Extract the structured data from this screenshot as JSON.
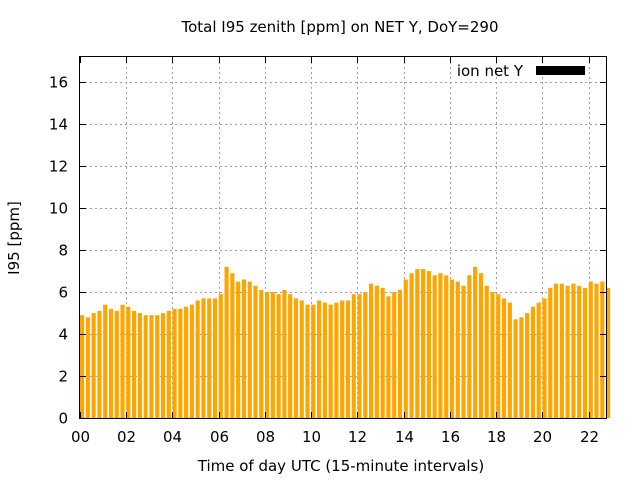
{
  "chart_data": {
    "type": "bar",
    "title": "Total I95 zenith [ppm] on NET Y, DoY=290",
    "xlabel": "Time of day UTC (15-minute intervals)",
    "ylabel": "I95 [ppm]",
    "xlim": [
      0,
      22.75
    ],
    "ylim": [
      0,
      17.2
    ],
    "x_ticks": [
      {
        "value": 0,
        "label": "00"
      },
      {
        "value": 2,
        "label": "02"
      },
      {
        "value": 4,
        "label": "04"
      },
      {
        "value": 6,
        "label": "06"
      },
      {
        "value": 8,
        "label": "08"
      },
      {
        "value": 10,
        "label": "10"
      },
      {
        "value": 12,
        "label": "12"
      },
      {
        "value": 14,
        "label": "14"
      },
      {
        "value": 16,
        "label": "16"
      },
      {
        "value": 18,
        "label": "18"
      },
      {
        "value": 20,
        "label": "20"
      },
      {
        "value": 22,
        "label": "22"
      }
    ],
    "y_ticks": [
      {
        "value": 0,
        "label": "0"
      },
      {
        "value": 2,
        "label": "2"
      },
      {
        "value": 4,
        "label": "4"
      },
      {
        "value": 6,
        "label": "6"
      },
      {
        "value": 8,
        "label": "8"
      },
      {
        "value": 10,
        "label": "10"
      },
      {
        "value": 12,
        "label": "12"
      },
      {
        "value": 14,
        "label": "14"
      },
      {
        "value": 16,
        "label": "16"
      }
    ],
    "grid": true,
    "legend_position": "top-right",
    "series": [
      {
        "name": "ion net Y",
        "color": "#ffa500",
        "legend_swatch_color": "#000000",
        "x_start": 0,
        "x_step": 0.25,
        "values": [
          4.9,
          4.8,
          5.0,
          5.1,
          5.4,
          5.2,
          5.1,
          5.4,
          5.3,
          5.1,
          5.0,
          4.9,
          4.9,
          4.9,
          5.0,
          5.1,
          5.2,
          5.2,
          5.3,
          5.4,
          5.6,
          5.7,
          5.7,
          5.7,
          5.9,
          7.2,
          6.9,
          6.5,
          6.6,
          6.5,
          6.3,
          6.1,
          6.0,
          6.0,
          5.9,
          6.1,
          5.9,
          5.7,
          5.6,
          5.4,
          5.4,
          5.6,
          5.5,
          5.4,
          5.5,
          5.6,
          5.6,
          5.9,
          5.9,
          6.0,
          6.4,
          6.3,
          6.2,
          5.8,
          6.0,
          6.1,
          6.6,
          6.9,
          7.1,
          7.1,
          7.0,
          6.8,
          6.9,
          6.8,
          6.6,
          6.5,
          6.3,
          6.8,
          7.2,
          6.9,
          6.3,
          6.0,
          5.9,
          5.7,
          5.5,
          4.7,
          4.8,
          5.0,
          5.3,
          5.5,
          5.7,
          6.2,
          6.4,
          6.4,
          6.3,
          6.4,
          6.3,
          6.2,
          6.5,
          6.4,
          6.5,
          6.2
        ]
      }
    ]
  }
}
